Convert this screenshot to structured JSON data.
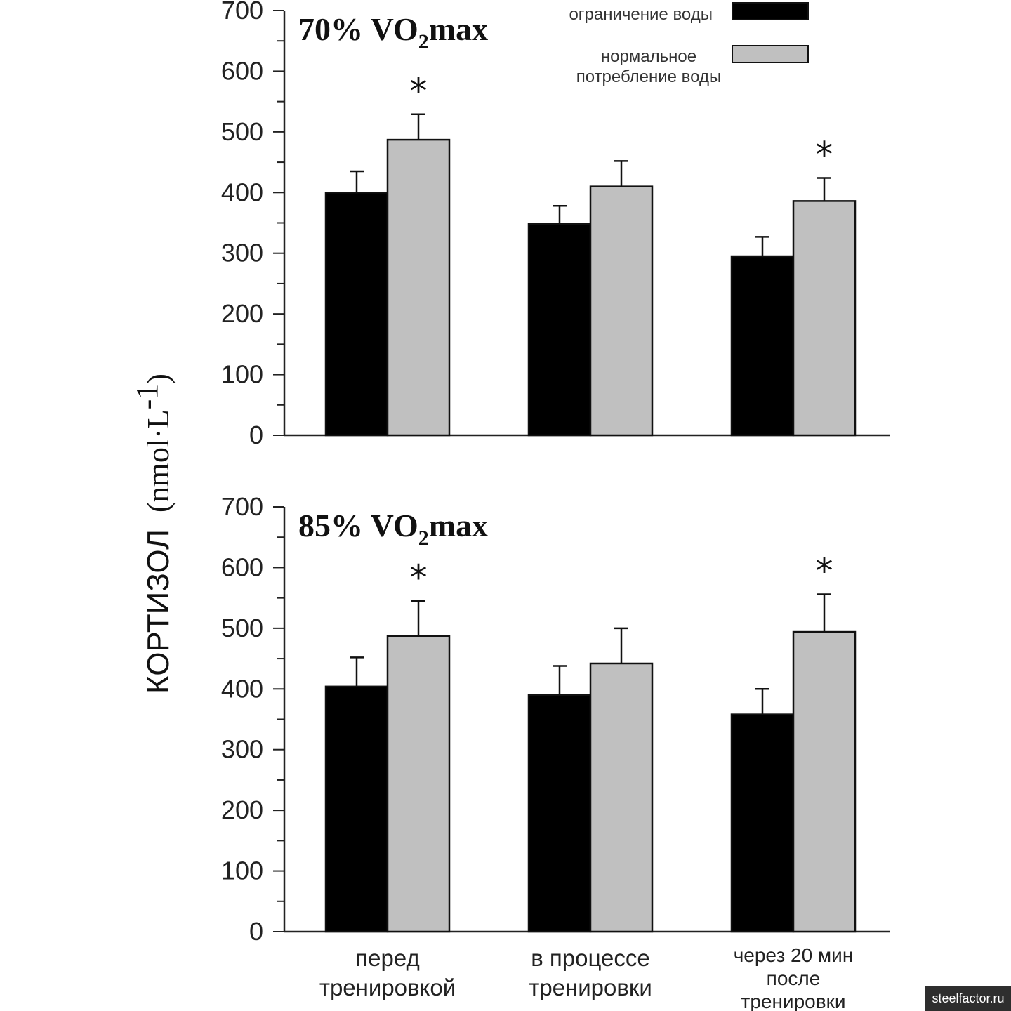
{
  "chart_data": {
    "type": "bar",
    "ylabel": "КОРТИЗОЛ",
    "ylabel_unit": "(nmol·L",
    "ylabel_unit_exp": "-1",
    "ylabel_unit_close": ")",
    "ylim": [
      0,
      700
    ],
    "yticks": [
      0,
      100,
      200,
      300,
      400,
      500,
      600,
      700
    ],
    "categories": [
      [
        "перед",
        "тренировкой"
      ],
      [
        "в процессе",
        "тренировки"
      ],
      [
        "через 20 мин",
        "после",
        "тренировки"
      ]
    ],
    "legend": {
      "placement": "top-right",
      "entries": [
        {
          "label": [
            "ограничение воды"
          ],
          "color": "#000000"
        },
        {
          "label": [
            "нормальное",
            "потребление воды"
          ],
          "color": "#c0c0c0"
        }
      ]
    },
    "significance_marker": "*",
    "panels": [
      {
        "title_main": "70% VO",
        "title_sub": "2",
        "title_end": "max",
        "series": [
          {
            "color": "#000000",
            "values": [
              400,
              348,
              295
            ],
            "errors": [
              35,
              30,
              32
            ]
          },
          {
            "color": "#c0c0c0",
            "values": [
              487,
              410,
              386
            ],
            "errors": [
              42,
              42,
              38
            ]
          }
        ],
        "significant": [
          true,
          false,
          true
        ]
      },
      {
        "title_main": "85% VO",
        "title_sub": "2",
        "title_end": "max",
        "series": [
          {
            "color": "#000000",
            "values": [
              404,
              390,
              358
            ],
            "errors": [
              48,
              48,
              42
            ]
          },
          {
            "color": "#c0c0c0",
            "values": [
              487,
              442,
              494
            ],
            "errors": [
              58,
              58,
              62
            ]
          }
        ],
        "significant": [
          true,
          false,
          true
        ]
      }
    ]
  },
  "watermark": "steelfactor.ru"
}
